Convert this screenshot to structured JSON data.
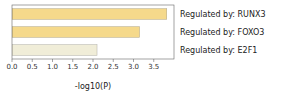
{
  "chart_data": {
    "type": "bar",
    "orientation": "horizontal",
    "categories": [
      "Regulated by: RUNX3",
      "Regulated by: FOXO3",
      "Regulated by: E2F1"
    ],
    "values": [
      3.82,
      3.15,
      2.1
    ],
    "colors": [
      "#F5D98B",
      "#F5D98B",
      "#F0EDD8"
    ],
    "xlabel": "-log10(P)",
    "xlim": [
      0,
      4.0
    ],
    "xticks": [
      {
        "value": 0,
        "label": "0.0"
      },
      0.5,
      {
        "value": 1,
        "label": "1.0"
      },
      1.5,
      {
        "value": 2,
        "label": "2.0"
      },
      2.5,
      {
        "value": 3,
        "label": "3.0"
      },
      3.5
    ]
  }
}
